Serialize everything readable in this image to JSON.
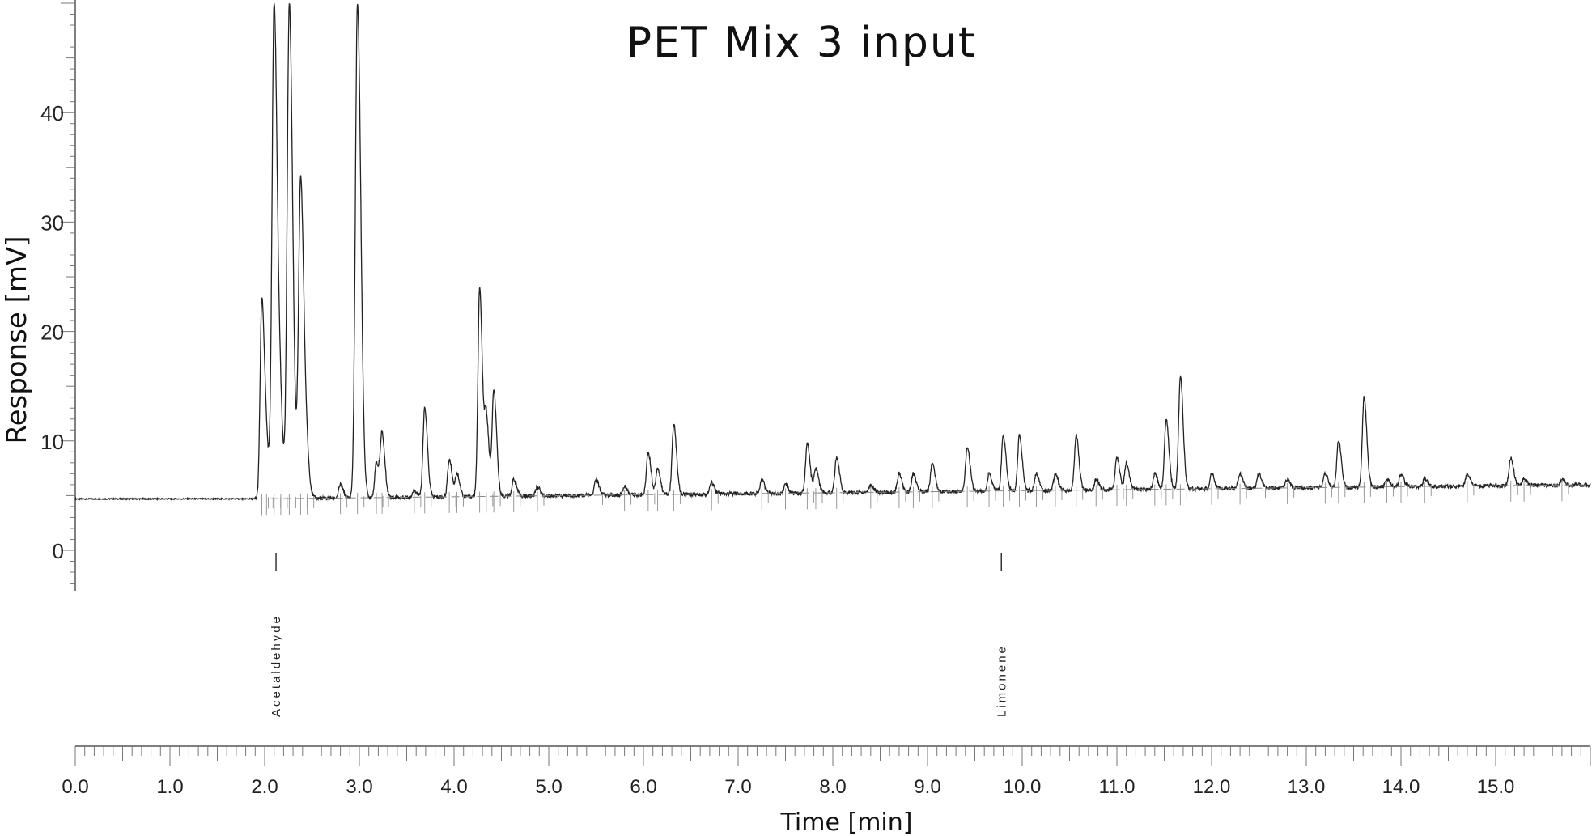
{
  "chart_data": {
    "type": "line",
    "title": "PET Mix 3 input",
    "xlabel": "Time [min]",
    "ylabel": "Response [mV]",
    "xlim": [
      0,
      16
    ],
    "ylim": [
      0,
      50
    ],
    "yticks": [
      0,
      10,
      20,
      30,
      40
    ],
    "ytick_labels": [
      "0",
      "10",
      "20",
      "30",
      "40"
    ],
    "xticks": [
      0,
      1,
      2,
      3,
      4,
      5,
      6,
      7,
      8,
      9,
      10,
      11,
      12,
      13,
      14,
      15
    ],
    "xtick_labels": [
      "0.0",
      "1.0",
      "2.0",
      "3.0",
      "4.0",
      "5.0",
      "6.0",
      "7.0",
      "8.0",
      "9.0",
      "10.0",
      "11.0",
      "12.0",
      "13.0",
      "14.0",
      "15.0"
    ],
    "grid": false,
    "baseline": {
      "start": 4.7,
      "end": 6.0
    },
    "series": [
      {
        "peaks": [
          {
            "x": 1.97,
            "y": 23.0
          },
          {
            "x": 2.02,
            "y": 8.0
          },
          {
            "x": 2.1,
            "y": 50.0
          },
          {
            "x": 2.17,
            "y": 10.0
          },
          {
            "x": 2.26,
            "y": 50.0
          },
          {
            "x": 2.38,
            "y": 34.0
          },
          {
            "x": 2.45,
            "y": 7.0
          },
          {
            "x": 2.8,
            "y": 6.0
          },
          {
            "x": 2.98,
            "y": 50.0
          },
          {
            "x": 3.18,
            "y": 8.0
          },
          {
            "x": 3.24,
            "y": 10.5
          },
          {
            "x": 3.58,
            "y": 5.5
          },
          {
            "x": 3.69,
            "y": 13.0
          },
          {
            "x": 3.95,
            "y": 8.3
          },
          {
            "x": 4.03,
            "y": 7.0
          },
          {
            "x": 4.27,
            "y": 24.0
          },
          {
            "x": 4.34,
            "y": 12.0
          },
          {
            "x": 4.42,
            "y": 14.5
          },
          {
            "x": 4.63,
            "y": 6.5
          },
          {
            "x": 4.88,
            "y": 5.8
          },
          {
            "x": 5.5,
            "y": 6.5
          },
          {
            "x": 5.8,
            "y": 5.8
          },
          {
            "x": 6.05,
            "y": 9.0
          },
          {
            "x": 6.15,
            "y": 7.5
          },
          {
            "x": 6.32,
            "y": 11.5
          },
          {
            "x": 6.72,
            "y": 6.2
          },
          {
            "x": 7.25,
            "y": 6.5
          },
          {
            "x": 7.5,
            "y": 6.0
          },
          {
            "x": 7.73,
            "y": 9.8
          },
          {
            "x": 7.82,
            "y": 7.5
          },
          {
            "x": 8.04,
            "y": 8.5
          },
          {
            "x": 8.4,
            "y": 6.0
          },
          {
            "x": 8.7,
            "y": 7.0
          },
          {
            "x": 8.85,
            "y": 7.0
          },
          {
            "x": 9.05,
            "y": 8.0
          },
          {
            "x": 9.42,
            "y": 9.5
          },
          {
            "x": 9.65,
            "y": 7.0
          },
          {
            "x": 9.8,
            "y": 10.5
          },
          {
            "x": 9.97,
            "y": 10.5
          },
          {
            "x": 10.15,
            "y": 7.0
          },
          {
            "x": 10.35,
            "y": 7.0
          },
          {
            "x": 10.57,
            "y": 10.5
          },
          {
            "x": 10.78,
            "y": 6.5
          },
          {
            "x": 11.0,
            "y": 8.5
          },
          {
            "x": 11.1,
            "y": 8.0
          },
          {
            "x": 11.4,
            "y": 7.0
          },
          {
            "x": 11.52,
            "y": 12.0
          },
          {
            "x": 11.67,
            "y": 16.0
          },
          {
            "x": 12.0,
            "y": 7.0
          },
          {
            "x": 12.3,
            "y": 7.0
          },
          {
            "x": 12.5,
            "y": 7.0
          },
          {
            "x": 12.8,
            "y": 6.5
          },
          {
            "x": 13.2,
            "y": 7.0
          },
          {
            "x": 13.34,
            "y": 10.0
          },
          {
            "x": 13.61,
            "y": 14.0
          },
          {
            "x": 13.85,
            "y": 6.5
          },
          {
            "x": 14.0,
            "y": 7.0
          },
          {
            "x": 14.25,
            "y": 6.5
          },
          {
            "x": 14.7,
            "y": 7.0
          },
          {
            "x": 15.16,
            "y": 8.5
          },
          {
            "x": 15.3,
            "y": 6.5
          },
          {
            "x": 15.7,
            "y": 6.5
          }
        ]
      }
    ],
    "annotations": [
      {
        "x": 2.12,
        "text": "Acetaldehyde"
      },
      {
        "x": 9.78,
        "text": "Limonene"
      }
    ]
  }
}
